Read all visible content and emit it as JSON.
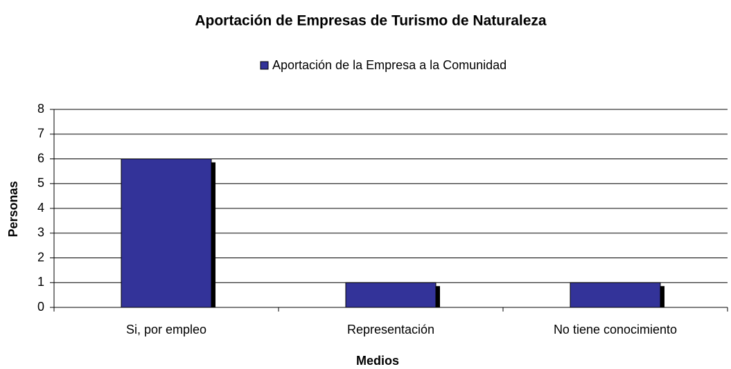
{
  "chart_data": {
    "type": "bar",
    "title": "Aportación de Empresas de Turismo de Naturaleza",
    "x_label": "Medios",
    "y_label": "Personas",
    "categories": [
      "Si, por empleo",
      "Representación",
      "No tiene conocimiento"
    ],
    "series": [
      {
        "name": "Aportación de la Empresa a la Comunidad",
        "color": "#333399",
        "values": [
          6,
          1,
          1
        ]
      }
    ],
    "ylim": [
      0,
      8
    ],
    "yticks": [
      0,
      1,
      2,
      3,
      4,
      5,
      6,
      7,
      8
    ],
    "grid": true,
    "legend": "top"
  }
}
